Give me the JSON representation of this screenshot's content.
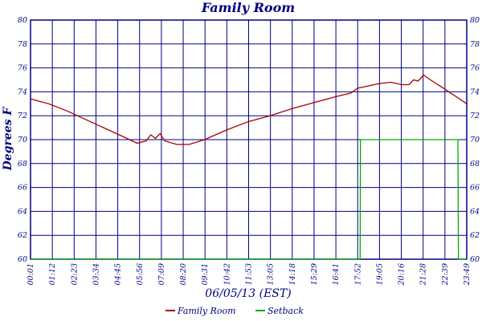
{
  "chart_data": {
    "type": "line",
    "title": "Family Room",
    "xlabel": "06/05/13 (EST)",
    "ylabel": "Degrees F",
    "xlim": [
      "00:01",
      "23:49"
    ],
    "ylim": [
      60,
      80
    ],
    "grid": true,
    "legend": "bottom",
    "x_ticks": [
      "00:01",
      "01:12",
      "02:23",
      "03:34",
      "04:45",
      "05:56",
      "07:09",
      "08:20",
      "09:31",
      "10:42",
      "11:53",
      "13:05",
      "14:18",
      "15:29",
      "16:41",
      "17:52",
      "19:05",
      "20:16",
      "21:28",
      "22:39",
      "23:49"
    ],
    "y_ticks_left": [
      60,
      62,
      64,
      66,
      68,
      70,
      72,
      74,
      76,
      78,
      80
    ],
    "y_ticks_right": [
      60,
      62,
      64,
      66,
      68,
      70,
      72,
      74,
      76,
      78,
      80
    ],
    "colors": {
      "grid": "#000080",
      "text": "#000080",
      "family_room": "#aa0000",
      "setback": "#00aa00"
    },
    "series": [
      {
        "name": "Family Room",
        "points": [
          [
            "00:01",
            73.4
          ],
          [
            "01:00",
            73.0
          ],
          [
            "02:00",
            72.4
          ],
          [
            "03:00",
            71.7
          ],
          [
            "04:00",
            71.0
          ],
          [
            "05:00",
            70.3
          ],
          [
            "05:50",
            69.7
          ],
          [
            "06:20",
            69.9
          ],
          [
            "06:35",
            70.4
          ],
          [
            "06:50",
            70.1
          ],
          [
            "07:05",
            70.5
          ],
          [
            "07:20",
            69.9
          ],
          [
            "08:00",
            69.6
          ],
          [
            "08:40",
            69.6
          ],
          [
            "09:31",
            70.0
          ],
          [
            "10:42",
            70.8
          ],
          [
            "11:53",
            71.5
          ],
          [
            "13:05",
            72.0
          ],
          [
            "14:18",
            72.6
          ],
          [
            "15:29",
            73.1
          ],
          [
            "16:41",
            73.6
          ],
          [
            "17:30",
            73.9
          ],
          [
            "17:52",
            74.3
          ],
          [
            "19:05",
            74.7
          ],
          [
            "19:40",
            74.8
          ],
          [
            "20:16",
            74.6
          ],
          [
            "20:40",
            74.6
          ],
          [
            "20:55",
            75.0
          ],
          [
            "21:10",
            74.9
          ],
          [
            "21:28",
            75.4
          ],
          [
            "21:50",
            75.0
          ],
          [
            "22:39",
            74.2
          ],
          [
            "23:49",
            73.0
          ]
        ]
      },
      {
        "name": "Setback",
        "points": [
          [
            "00:01",
            60
          ],
          [
            "18:00",
            60
          ],
          [
            "18:01",
            70
          ],
          [
            "23:20",
            70
          ],
          [
            "23:22",
            60
          ],
          [
            "23:49",
            60
          ]
        ]
      }
    ]
  }
}
